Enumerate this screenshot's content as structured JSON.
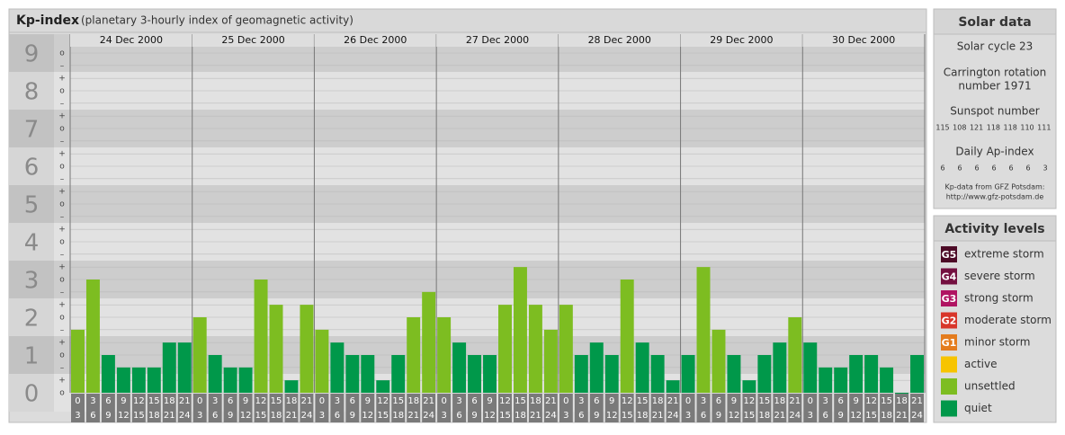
{
  "chart_data": {
    "type": "bar",
    "title": "Kp-index",
    "subtitle": "(planetary 3-hourly index of geomagnetic activity)",
    "ylim": [
      0,
      9.5
    ],
    "yticks": [
      0,
      1,
      2,
      3,
      4,
      5,
      6,
      7,
      8,
      9
    ],
    "minor_yticks": [
      {
        "value": 0,
        "label": "o"
      },
      {
        "value": 0.33,
        "label": "+"
      },
      {
        "value": 0.67,
        "label": "–"
      },
      {
        "value": 1,
        "label": "o"
      },
      {
        "value": 1.33,
        "label": "+"
      },
      {
        "value": 1.67,
        "label": "–"
      },
      {
        "value": 2,
        "label": "o"
      },
      {
        "value": 2.33,
        "label": "+"
      },
      {
        "value": 2.67,
        "label": "–"
      },
      {
        "value": 3,
        "label": "o"
      },
      {
        "value": 3.33,
        "label": "+"
      },
      {
        "value": 3.67,
        "label": "–"
      },
      {
        "value": 4,
        "label": "o"
      },
      {
        "value": 4.33,
        "label": "+"
      },
      {
        "value": 4.67,
        "label": "–"
      },
      {
        "value": 5,
        "label": "o"
      },
      {
        "value": 5.33,
        "label": "+"
      },
      {
        "value": 5.67,
        "label": "–"
      },
      {
        "value": 6,
        "label": "o"
      },
      {
        "value": 6.33,
        "label": "+"
      },
      {
        "value": 6.67,
        "label": "–"
      },
      {
        "value": 7,
        "label": "o"
      },
      {
        "value": 7.33,
        "label": "+"
      },
      {
        "value": 7.67,
        "label": "–"
      },
      {
        "value": 8,
        "label": "o"
      },
      {
        "value": 8.33,
        "label": "+"
      },
      {
        "value": 8.67,
        "label": "–"
      },
      {
        "value": 9,
        "label": "o"
      }
    ],
    "hours": [
      [
        "0",
        "3"
      ],
      [
        "3",
        "6"
      ],
      [
        "6",
        "9"
      ],
      [
        "9",
        "12"
      ],
      [
        "12",
        "15"
      ],
      [
        "15",
        "18"
      ],
      [
        "18",
        "21"
      ],
      [
        "21",
        "24"
      ]
    ],
    "days": [
      {
        "date": "24 Dec 2000",
        "values": [
          1.67,
          3,
          1,
          0.67,
          0.67,
          0.67,
          1.33,
          1.33
        ],
        "colors": [
          "#7dbd21",
          "#7dbd21",
          "#00984a",
          "#00984a",
          "#00984a",
          "#00984a",
          "#00984a",
          "#00984a"
        ]
      },
      {
        "date": "25 Dec 2000",
        "values": [
          2,
          1,
          0.67,
          0.67,
          3,
          2.33,
          0.33,
          2.33
        ],
        "colors": [
          "#7dbd21",
          "#00984a",
          "#00984a",
          "#00984a",
          "#7dbd21",
          "#7dbd21",
          "#00984a",
          "#7dbd21"
        ]
      },
      {
        "date": "26 Dec 2000",
        "values": [
          1.67,
          1.33,
          1,
          1,
          0.33,
          1,
          2,
          2.67
        ],
        "colors": [
          "#7dbd21",
          "#00984a",
          "#00984a",
          "#00984a",
          "#00984a",
          "#00984a",
          "#7dbd21",
          "#7dbd21"
        ]
      },
      {
        "date": "27 Dec 2000",
        "values": [
          2,
          1.33,
          1,
          1,
          2.33,
          3.33,
          2.33,
          1.67
        ],
        "colors": [
          "#7dbd21",
          "#00984a",
          "#00984a",
          "#00984a",
          "#7dbd21",
          "#7dbd21",
          "#7dbd21",
          "#7dbd21"
        ]
      },
      {
        "date": "28 Dec 2000",
        "values": [
          2.33,
          1,
          1.33,
          1,
          3,
          1.33,
          1,
          0.33
        ],
        "colors": [
          "#7dbd21",
          "#00984a",
          "#00984a",
          "#00984a",
          "#7dbd21",
          "#00984a",
          "#00984a",
          "#00984a"
        ]
      },
      {
        "date": "29 Dec 2000",
        "values": [
          1,
          3.33,
          1.67,
          1,
          0.33,
          1,
          1.33,
          2
        ],
        "colors": [
          "#00984a",
          "#7dbd21",
          "#7dbd21",
          "#00984a",
          "#00984a",
          "#00984a",
          "#00984a",
          "#7dbd21"
        ]
      },
      {
        "date": "30 Dec 2000",
        "values": [
          1.33,
          0.67,
          0.67,
          1,
          1,
          0.67,
          0,
          1
        ],
        "colors": [
          "#00984a",
          "#00984a",
          "#00984a",
          "#00984a",
          "#00984a",
          "#00984a",
          "#00984a",
          "#00984a"
        ]
      }
    ]
  },
  "solar_data": {
    "title": "Solar data",
    "cycle": "Solar cycle 23",
    "rotation": [
      "Carrington rotation",
      "number 1971"
    ],
    "sunspot_title": "Sunspot number",
    "sunspot": [
      "115",
      "108",
      "121",
      "118",
      "118",
      "110",
      "111"
    ],
    "ap_title": "Daily Ap-index",
    "ap": [
      "6",
      "6",
      "6",
      "6",
      "6",
      "6",
      "3"
    ],
    "source": [
      "Kp-data from GFZ Potsdam:",
      "http://www.gfz-potsdam.de"
    ]
  },
  "activity_levels": {
    "title": "Activity levels",
    "items": [
      {
        "badge": "G5",
        "name": "extreme storm",
        "color": "#4c0a26"
      },
      {
        "badge": "G4",
        "name": "severe storm",
        "color": "#741040"
      },
      {
        "badge": "G3",
        "name": "strong storm",
        "color": "#b01462"
      },
      {
        "badge": "G2",
        "name": "moderate storm",
        "color": "#d8362a"
      },
      {
        "badge": "G1",
        "name": "minor storm",
        "color": "#e47c1e"
      },
      {
        "badge": "",
        "name": "active",
        "color": "#f7c400"
      },
      {
        "badge": "",
        "name": "unsettled",
        "color": "#7dbd21"
      },
      {
        "badge": "",
        "name": "quiet",
        "color": "#00984a"
      }
    ]
  }
}
